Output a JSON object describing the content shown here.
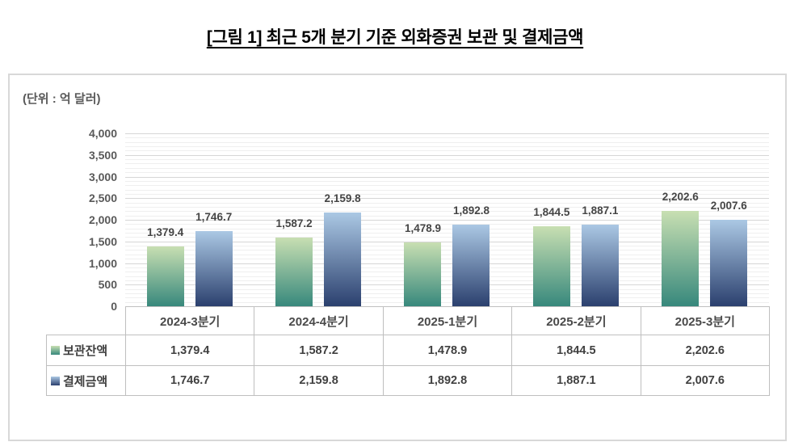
{
  "chart_data": {
    "type": "bar",
    "title": "[그림 1] 최근 5개 분기 기준 외화증권 보관 및 결제금액",
    "unit": "(단위 : 억 달러)",
    "categories": [
      "2024-3분기",
      "2024-4분기",
      "2025-1분기",
      "2025-2분기",
      "2025-3분기"
    ],
    "series": [
      {
        "name": "보관잔액",
        "values": [
          1379.4,
          1587.2,
          1478.9,
          1844.5,
          2202.6
        ],
        "color_top": "#c8dfb2",
        "color_bottom": "#37887c"
      },
      {
        "name": "결제금액",
        "values": [
          1746.7,
          2159.8,
          1892.8,
          1887.1,
          2007.6
        ],
        "color_top": "#abc8e4",
        "color_bottom": "#2b406e"
      }
    ],
    "ylim": [
      0,
      4000
    ],
    "y_major_step": 500,
    "y_minor_step": 100,
    "yticks": [
      "0",
      "500",
      "1,000",
      "1,500",
      "2,000",
      "2,500",
      "3,000",
      "3,500",
      "4,000"
    ],
    "grid": "horizontal major+minor",
    "legend_position": "table rows below chart",
    "value_labels": true
  }
}
